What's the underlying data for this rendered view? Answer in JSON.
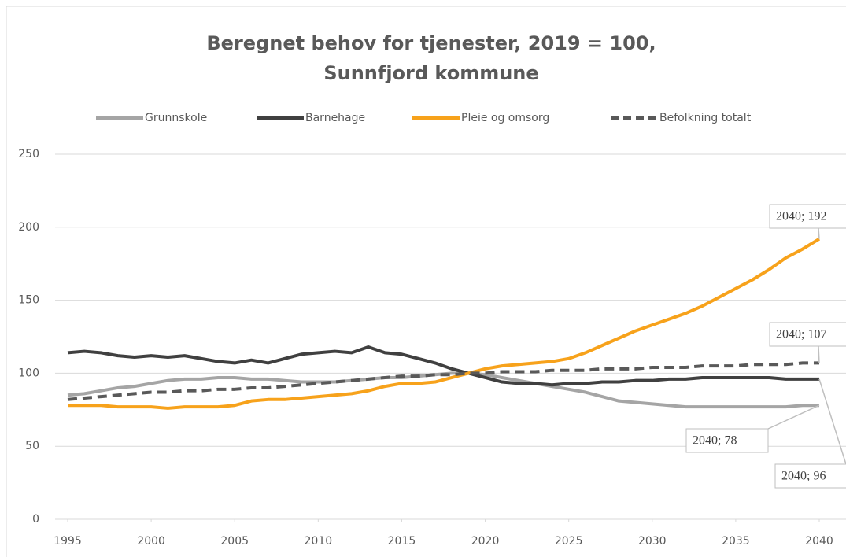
{
  "chart_data": {
    "type": "line",
    "title": [
      "Beregnet behov for tjenester, 2019 = 100,",
      "Sunnfjord kommune"
    ],
    "x": [
      1995,
      1996,
      1997,
      1998,
      1999,
      2000,
      2001,
      2002,
      2003,
      2004,
      2005,
      2006,
      2007,
      2008,
      2009,
      2010,
      2011,
      2012,
      2013,
      2014,
      2015,
      2016,
      2017,
      2018,
      2019,
      2020,
      2021,
      2022,
      2023,
      2024,
      2025,
      2026,
      2027,
      2028,
      2029,
      2030,
      2031,
      2032,
      2033,
      2034,
      2035,
      2036,
      2037,
      2038,
      2039,
      2040
    ],
    "xlim": [
      1995,
      2040
    ],
    "xticks": [
      1995,
      2000,
      2005,
      2010,
      2015,
      2020,
      2025,
      2030,
      2035,
      2040
    ],
    "ylim": [
      0,
      250
    ],
    "yticks": [
      0,
      50,
      100,
      150,
      200,
      250
    ],
    "grid": true,
    "legend": "top",
    "series": [
      {
        "name": "Grunnskole",
        "color": "#a5a5a5",
        "dash": false,
        "end_label": "2040;  78",
        "values": [
          85,
          86,
          88,
          90,
          91,
          93,
          95,
          96,
          96,
          97,
          97,
          96,
          96,
          95,
          94,
          94,
          94,
          95,
          96,
          97,
          97,
          98,
          99,
          100,
          100,
          99,
          97,
          95,
          93,
          91,
          89,
          87,
          84,
          81,
          80,
          79,
          78,
          77,
          77,
          77,
          77,
          77,
          77,
          77,
          78,
          78
        ]
      },
      {
        "name": "Barnehage",
        "color": "#404040",
        "dash": false,
        "end_label": "2040;  96",
        "values": [
          114,
          115,
          114,
          112,
          111,
          112,
          111,
          112,
          110,
          108,
          107,
          109,
          107,
          110,
          113,
          114,
          115,
          114,
          118,
          114,
          113,
          110,
          107,
          103,
          100,
          97,
          94,
          93,
          93,
          92,
          93,
          93,
          94,
          94,
          95,
          95,
          96,
          96,
          97,
          97,
          97,
          97,
          97,
          96,
          96,
          96
        ]
      },
      {
        "name": "Pleie og omsorg",
        "color": "#f7a21b",
        "dash": false,
        "end_label": "2040;  192",
        "values": [
          78,
          78,
          78,
          77,
          77,
          77,
          76,
          77,
          77,
          77,
          78,
          81,
          82,
          82,
          83,
          84,
          85,
          86,
          88,
          91,
          93,
          93,
          94,
          97,
          100,
          103,
          105,
          106,
          107,
          108,
          110,
          114,
          119,
          124,
          129,
          133,
          137,
          141,
          146,
          152,
          158,
          164,
          171,
          179,
          185,
          192
        ]
      },
      {
        "name": "Befolkning totalt",
        "color": "#595959",
        "dash": true,
        "end_label": "2040;  107",
        "values": [
          82,
          83,
          84,
          85,
          86,
          87,
          87,
          88,
          88,
          89,
          89,
          90,
          90,
          91,
          92,
          93,
          94,
          95,
          96,
          97,
          98,
          98,
          99,
          99,
          100,
          100,
          101,
          101,
          101,
          102,
          102,
          102,
          103,
          103,
          103,
          104,
          104,
          104,
          105,
          105,
          105,
          106,
          106,
          106,
          107,
          107
        ]
      }
    ]
  }
}
